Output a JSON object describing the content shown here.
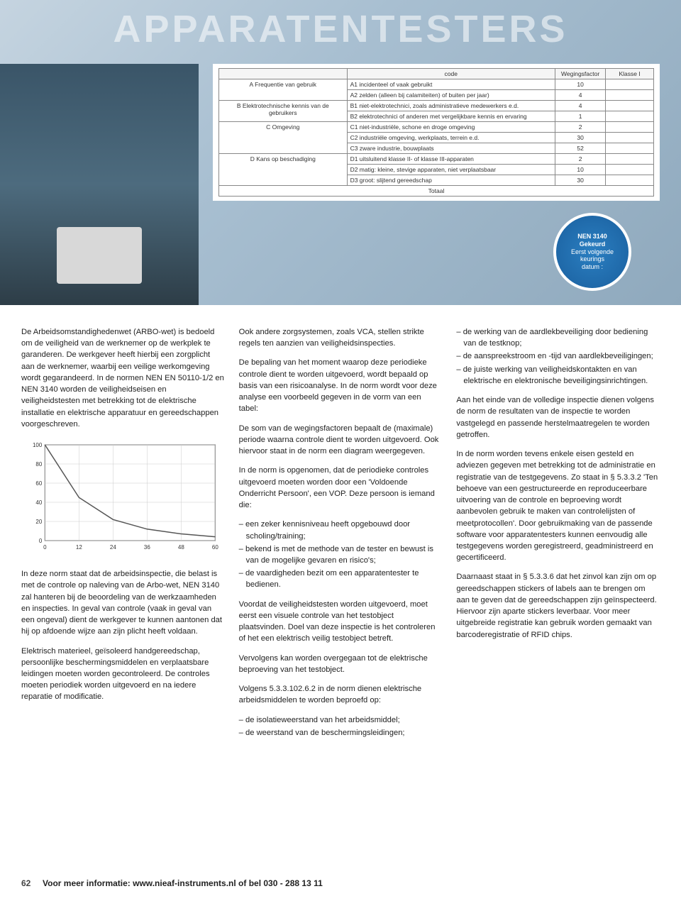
{
  "hero": {
    "title": "APPARATENTESTERS",
    "sticker": {
      "line1": "NEN 3140",
      "line2": "Gekeurd",
      "line3": "Eerst volgende",
      "line4": "keurings",
      "line5": "datum :",
      "bg_color": "#2b7fc1"
    },
    "table": {
      "headers": [
        "",
        "code",
        "Wegingsfactor",
        "Klasse I"
      ],
      "rows": [
        {
          "group": "A\nFrequentie van gebruik",
          "lines": [
            "A1 incidenteel of vaak gebruikt",
            "A2 zelden (alleen bij calamiteiten) of buiten per jaar)"
          ],
          "weights": [
            "10",
            "4"
          ]
        },
        {
          "group": "B\nElektrotechnische kennis van de gebruikers",
          "lines": [
            "B1 niet-elektrotechnici, zoals administratieve medewerkers e.d.",
            "B2 elektrotechnici of anderen met vergelijkbare kennis en ervaring"
          ],
          "weights": [
            "4",
            "1"
          ]
        },
        {
          "group": "C\nOmgeving",
          "lines": [
            "C1 niet-industriële, schone en droge omgeving",
            "C2 industriële omgeving, werkplaats, terrein e.d.",
            "C3 zware industrie, bouwplaats"
          ],
          "weights": [
            "2",
            "30",
            "52"
          ]
        },
        {
          "group": "D\nKans op beschadiging",
          "lines": [
            "D1 uitsluitend klasse II- of klasse III-apparaten",
            "D2 matig: kleine, stevige apparaten, niet verplaatsbaar",
            "D3 groot: slijtend gereedschap"
          ],
          "weights": [
            "2",
            "10",
            "30"
          ]
        }
      ],
      "footer": "Totaal"
    }
  },
  "chart": {
    "type": "line",
    "x_values": [
      0,
      12,
      24,
      36,
      48,
      60
    ],
    "y_values": [
      100,
      45,
      22,
      12,
      7,
      4
    ],
    "xlim": [
      0,
      60
    ],
    "ylim": [
      0,
      100
    ],
    "xtick_step": 12,
    "ytick_step": 20,
    "line_color": "#555555",
    "grid_color": "#cccccc",
    "axis_color": "#333333",
    "background_color": "#ffffff",
    "line_width": 1.5
  },
  "col1": {
    "p1": "De Arbeidsomstandighedenwet (ARBO-wet) is bedoeld om de veiligheid van de werknemer op de werkplek te garanderen. De werkgever heeft hierbij een zorgplicht aan de werknemer, waarbij een veilige werkomgeving wordt gegarandeerd. In de normen NEN EN 50110-1/2 en NEN 3140 worden de veiligheidseisen en veiligheidstesten met betrekking tot de elektrische installatie en elektrische apparatuur en gereedschappen voorgeschreven.",
    "p2": "In deze norm staat dat de arbeidsinspectie, die belast is met de controle op naleving van de Arbo-wet, NEN 3140 zal hanteren bij de beoordeling van de werkzaamheden en inspecties. In geval van controle (vaak in geval van een ongeval) dient de werkgever te kunnen aantonen dat hij op afdoende wijze aan zijn plicht heeft voldaan.",
    "p3": "Elektrisch materieel, geïsoleerd handgereedschap, persoonlijke beschermingsmiddelen en verplaatsbare leidingen moeten worden gecontroleerd. De controles moeten periodiek worden uitgevoerd en na iedere reparatie of modificatie."
  },
  "col2": {
    "p1": "Ook andere zorgsystemen, zoals VCA, stellen strikte regels ten aanzien van veiligheidsinspecties.",
    "p2": "De bepaling van het moment waarop deze periodieke controle dient te worden uitgevoerd, wordt bepaald op basis van een risicoanalyse. In de norm wordt voor deze analyse een voorbeeld gegeven in de vorm van een tabel:",
    "p3": "De som van de wegingsfactoren bepaalt de (maximale) periode waarna controle dient te worden uitgevoerd. Ook hiervoor staat in de norm een diagram weergegeven.",
    "p4": "In de norm is opgenomen, dat de periodieke controles uitgevoerd moeten worden door een 'Voldoende Onderricht Persoon', een VOP. Deze persoon is iemand die:",
    "list1": [
      "een zeker kennisniveau heeft opgebouwd door scholing/training;",
      "bekend is met de methode van de tester en bewust is van de mogelijke gevaren en risico's;",
      "de vaardigheden bezit om een apparatentester te bedienen."
    ],
    "p5": "Voordat de veiligheidstesten worden uitgevoerd, moet eerst een visuele controle van het testobject plaatsvinden. Doel van deze inspectie is het controleren of het een elektrisch veilig testobject betreft.",
    "p6": "Vervolgens kan worden overgegaan tot de elektrische beproeving van het testobject.",
    "p7": "Volgens 5.3.3.102.6.2 in de norm dienen elektrische arbeidsmiddelen te worden beproefd op:",
    "list2": [
      "de isolatieweerstand van het arbeidsmiddel;",
      "de weerstand van de beschermingsleidingen;"
    ]
  },
  "col3": {
    "list1": [
      "de werking van de aardlekbeveiliging door bediening van de testknop;",
      "de aanspreekstroom en -tijd van aardlekbeveiligingen;",
      "de juiste werking van veiligheidskontakten en van elektrische en elektronische beveiligingsinrichtingen."
    ],
    "p1": "Aan het einde van de volledige inspectie dienen volgens de norm de resultaten van de inspectie te worden vastgelegd en passende herstelmaatregelen te worden getroffen.",
    "p2": "In de norm worden tevens enkele eisen gesteld en adviezen gegeven met betrekking tot de administratie en registratie van de testgegevens. Zo staat in § 5.3.3.2 'Ten behoeve van een gestructureerde en reproduceerbare uitvoering van de controle en beproeving wordt aanbevolen gebruik te maken van controlelijsten of meetprotocollen'. Door gebruikmaking van de passende software voor apparatentesters kunnen eenvoudig alle testgegevens worden geregistreerd, geadministreerd en gecertificeerd.",
    "p3": "Daarnaast staat in § 5.3.3.6 dat het zinvol kan zijn om op gereedschappen stickers of labels aan te brengen om aan te geven dat de gereedschappen zijn geïnspecteerd. Hiervoor zijn aparte stickers leverbaar. Voor meer uitgebreide registratie kan gebruik worden gemaakt van barcoderegistratie of RFID chips."
  },
  "footer": {
    "page": "62",
    "text": "Voor meer informatie: www.nieaf-instruments.nl of bel 030 - 288 13 11"
  }
}
